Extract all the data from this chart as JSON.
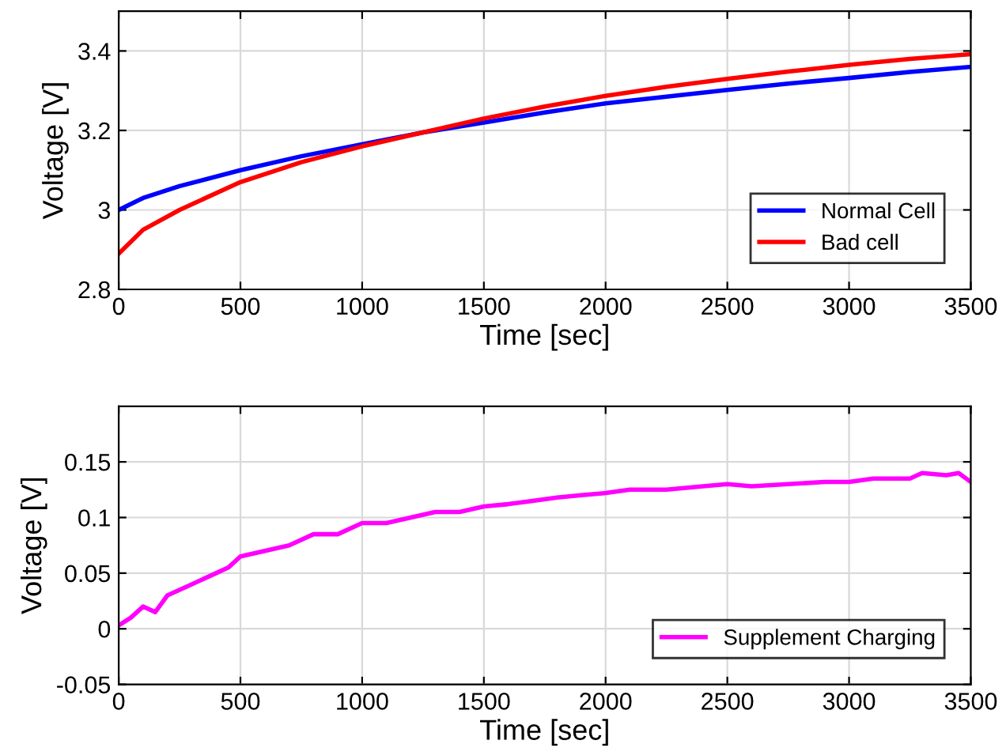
{
  "chart_data": [
    {
      "type": "line",
      "xlabel": "Time [sec]",
      "ylabel": "Voltage [V]",
      "xlim": [
        0,
        3500
      ],
      "xticks": [
        0,
        500,
        1000,
        1500,
        2000,
        2500,
        3000,
        3500
      ],
      "ylim": [
        2.8,
        3.5
      ],
      "yticks": [
        2.8,
        3,
        3.2,
        3.4
      ],
      "grid": true,
      "legend": "bottom right",
      "x": [
        0,
        100,
        250,
        500,
        750,
        1000,
        1250,
        1500,
        1750,
        2000,
        2250,
        2500,
        2750,
        3000,
        3250,
        3500
      ],
      "series": [
        {
          "name": "Normal Cell",
          "color": "#0000ff",
          "values": [
            3.0,
            3.03,
            3.06,
            3.1,
            3.135,
            3.165,
            3.195,
            3.22,
            3.245,
            3.268,
            3.285,
            3.302,
            3.318,
            3.332,
            3.347,
            3.36
          ]
        },
        {
          "name": "Bad cell",
          "color": "#ff0000",
          "values": [
            2.89,
            2.95,
            3.0,
            3.07,
            3.12,
            3.16,
            3.195,
            3.23,
            3.26,
            3.287,
            3.31,
            3.33,
            3.348,
            3.365,
            3.38,
            3.392
          ]
        }
      ]
    },
    {
      "type": "line",
      "xlabel": "Time [sec]",
      "ylabel": "Voltage [V]",
      "xlim": [
        0,
        3500
      ],
      "xticks": [
        0,
        500,
        1000,
        1500,
        2000,
        2500,
        3000,
        3500
      ],
      "ylim": [
        -0.05,
        0.2
      ],
      "yticks": [
        -0.05,
        0,
        0.05,
        0.1,
        0.15
      ],
      "grid": true,
      "legend": "bottom right",
      "x": [
        0,
        50,
        100,
        150,
        200,
        300,
        400,
        450,
        500,
        600,
        700,
        800,
        900,
        1000,
        1100,
        1200,
        1300,
        1400,
        1500,
        1600,
        1700,
        1800,
        1900,
        2000,
        2100,
        2250,
        2400,
        2500,
        2600,
        2750,
        2900,
        3000,
        3100,
        3250,
        3300,
        3400,
        3450,
        3500
      ],
      "series": [
        {
          "name": "Supplement Charging",
          "color": "#ff00ff",
          "values": [
            0.003,
            0.01,
            0.02,
            0.015,
            0.03,
            0.04,
            0.05,
            0.055,
            0.065,
            0.07,
            0.075,
            0.085,
            0.085,
            0.095,
            0.095,
            0.1,
            0.105,
            0.105,
            0.11,
            0.112,
            0.115,
            0.118,
            0.12,
            0.122,
            0.125,
            0.125,
            0.128,
            0.13,
            0.128,
            0.13,
            0.132,
            0.132,
            0.135,
            0.135,
            0.14,
            0.138,
            0.14,
            0.132
          ]
        }
      ]
    }
  ]
}
